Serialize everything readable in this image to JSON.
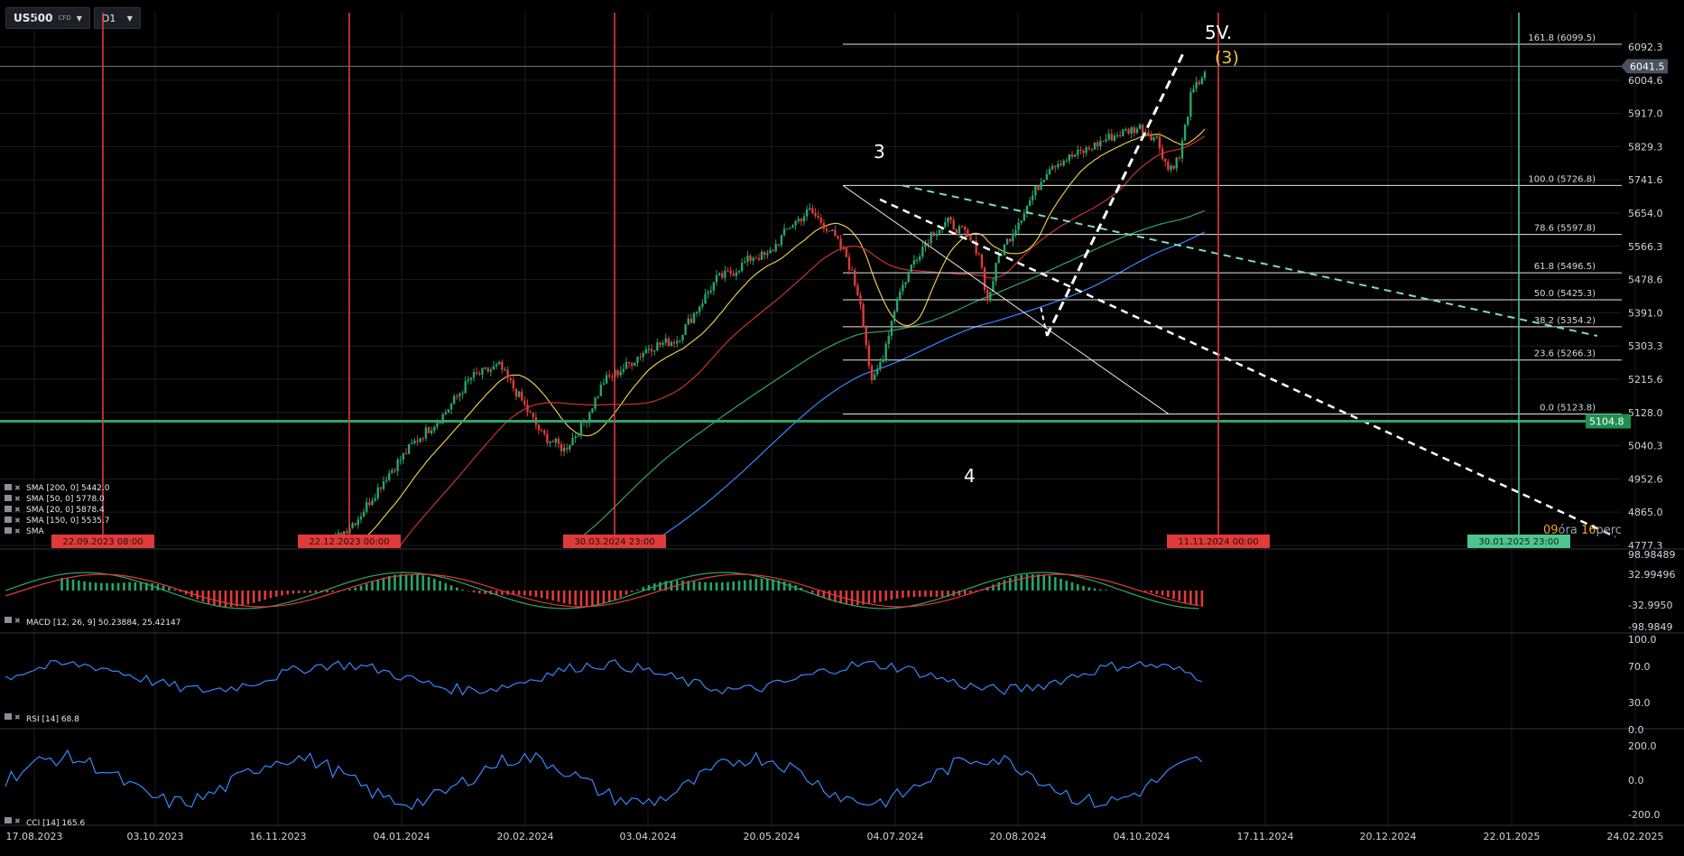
{
  "toolbar": {
    "symbol": "US500",
    "type": "CFD",
    "timeframe": "D1"
  },
  "chart_data": {
    "type": "candlestick",
    "price_axis_ticks": [
      "6092.3",
      "6004.6",
      "5917.0",
      "5829.3",
      "5741.6",
      "5654.0",
      "5566.3",
      "5478.6",
      "5391.0",
      "5303.3",
      "5215.6",
      "5128.0",
      "5040.3",
      "4952.6",
      "4865.0",
      "4777.3"
    ],
    "date_axis_ticks": [
      "17.08.2023",
      "03.10.2023",
      "16.11.2023",
      "04.01.2024",
      "20.02.2024",
      "03.04.2024",
      "20.05.2024",
      "04.07.2024",
      "20.08.2024",
      "04.10.2024",
      "17.11.2024",
      "20.12.2024",
      "22.01.2025",
      "24.02.2025"
    ],
    "current_price": "6041.5",
    "horizontal_line_label": "5104.8",
    "fibonacci": [
      {
        "label": "161.8 (6099.5)",
        "price": 6099.5
      },
      {
        "label": "100.0 (5726.8)",
        "price": 5726.8
      },
      {
        "label": "78.6 (5597.8)",
        "price": 5597.8
      },
      {
        "label": "61.8 (5496.5)",
        "price": 5496.5
      },
      {
        "label": "50.0 (5425.3)",
        "price": 5425.3
      },
      {
        "label": "38.2 (5354.2)",
        "price": 5354.2
      },
      {
        "label": "23.6 (5266.3)",
        "price": 5266.3
      },
      {
        "label": "0.0 (5123.8)",
        "price": 5123.8
      }
    ],
    "vertical_lines": [
      {
        "label": "22.09.2023 08:00",
        "color": "#e03a3a"
      },
      {
        "label": "22.12.2023 00:00",
        "color": "#e03a3a"
      },
      {
        "label": "30.03.2024 23:00",
        "color": "#e03a3a"
      },
      {
        "label": "11.11.2024 00:00",
        "color": "#e03a3a"
      },
      {
        "label": "30.01.2025 23:00",
        "color": "#4ec48e"
      }
    ],
    "wave_labels": [
      "3",
      "4",
      "5V.",
      "(3)"
    ],
    "countdown": {
      "hours": "09",
      "hours_unit": "óra",
      "minutes": "16",
      "minutes_unit": "perc"
    },
    "indicators": [
      {
        "label": "SMA [200, 0] 5442.0",
        "color": "#3a86ff"
      },
      {
        "label": "SMA [50, 0] 5778.0",
        "color": "#e03a3a"
      },
      {
        "label": "SMA [20, 0] 5878.4",
        "color": "#e8c54a"
      },
      {
        "label": "SMA [150, 0] 5535.7",
        "color": "#2fa565"
      },
      {
        "label": "SMA",
        "color": "#cccccc"
      }
    ],
    "macd": {
      "label": "MACD [12, 26, 9] 50.23884, 25.42147",
      "ticks": [
        "98.98489",
        "32.99496",
        "-32.9950",
        "-98.9849"
      ]
    },
    "rsi": {
      "label": "RSI [14] 68.8",
      "ticks": [
        "100.0",
        "70.0",
        "30.0",
        "0.0"
      ]
    },
    "cci": {
      "label": "CCI [14] 165.6",
      "ticks": [
        "200.0",
        "0.0",
        "-200.0"
      ]
    },
    "colors": {
      "up": "#26a66a",
      "down": "#e03a3a",
      "background": "#000000",
      "grid": "#1a1d22"
    }
  }
}
